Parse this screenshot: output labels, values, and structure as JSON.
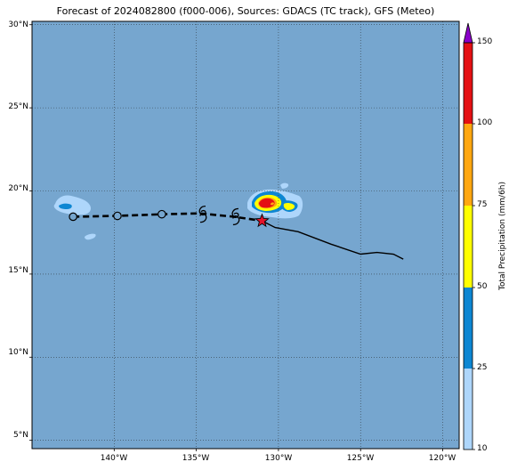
{
  "title": "Forecast of 2024082800 (f000-006), Sources: GDACS (TC track), GFS (Meteo)",
  "colors": {
    "ocean": "#76a6cf",
    "precip_10_25": "#aed6fb",
    "precip_25_50": "#0d86d2",
    "precip_50_75": "#ffff00",
    "precip_75_100": "#ffa711",
    "precip_100_150": "#e41013",
    "precip_over_150": "#8a00c9",
    "track": "#000000",
    "current_position_marker": "#e3132a"
  },
  "map": {
    "lon_range": [
      -145,
      -119
    ],
    "lat_range": [
      4.5,
      30.2
    ],
    "lat_labels": [
      "30°N",
      "25°N",
      "20°N",
      "15°N",
      "10°N",
      "5°N"
    ],
    "lon_labels": [
      "140°W",
      "135°W",
      "130°W",
      "125°W",
      "120°W"
    ],
    "gridlines": "dotted"
  },
  "colorbar": {
    "title": "Total Precipitation (mm/6h)",
    "ticks": [
      "10",
      "25",
      "50",
      "75",
      "100",
      "150"
    ]
  },
  "track": {
    "past_points": [
      {
        "lon": -142.5,
        "lat": 18.45
      },
      {
        "lon": -139.8,
        "lat": 18.5
      },
      {
        "lon": -137.1,
        "lat": 18.6
      },
      {
        "lon": -134.8,
        "lat": 18.65
      },
      {
        "lon": -132.7,
        "lat": 18.45
      },
      {
        "lon": -131.0,
        "lat": 18.2
      }
    ],
    "forecast_points": [
      {
        "lon": -131.0,
        "lat": 18.2
      },
      {
        "lon": -130.2,
        "lat": 17.8
      },
      {
        "lon": -128.8,
        "lat": 17.55
      },
      {
        "lon": -126.8,
        "lat": 16.8
      },
      {
        "lon": -125.0,
        "lat": 16.2
      },
      {
        "lon": -124.0,
        "lat": 16.3
      },
      {
        "lon": -123.0,
        "lat": 16.2
      },
      {
        "lon": -122.4,
        "lat": 15.9
      }
    ],
    "circle_markers": [
      {
        "lon": -142.5,
        "lat": 18.45
      },
      {
        "lon": -139.8,
        "lat": 18.5
      },
      {
        "lon": -137.1,
        "lat": 18.6
      }
    ],
    "cyclone_symbols": [
      {
        "lon": -134.6,
        "lat": 18.6
      },
      {
        "lon": -132.6,
        "lat": 18.45
      }
    ],
    "current_position": {
      "lon": -131.0,
      "lat": 18.2
    }
  }
}
